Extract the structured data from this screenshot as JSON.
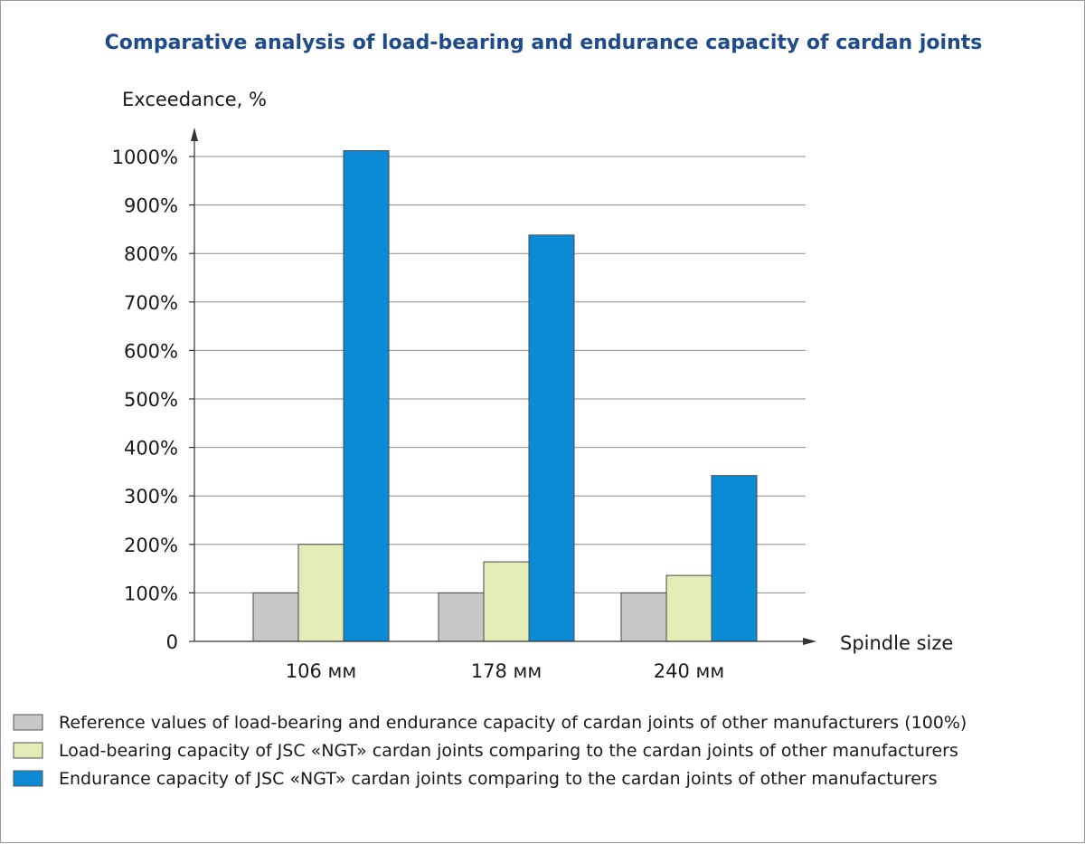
{
  "chart_data": {
    "type": "bar",
    "title": "Comparative analysis of load-bearing and endurance capacity of cardan joints",
    "ylabel": "Exceedance, %",
    "xlabel": "Spindle size",
    "categories": [
      "106 мм",
      "178 мм",
      "240 мм"
    ],
    "ylim": [
      0,
      1000
    ],
    "yticks": [
      0,
      100,
      200,
      300,
      400,
      500,
      600,
      700,
      800,
      900,
      1000
    ],
    "ytick_labels": [
      "0",
      "100%",
      "200%",
      "300%",
      "400%",
      "500%",
      "600%",
      "700%",
      "800%",
      "900%",
      "1000%"
    ],
    "grid": "horizontal",
    "legend_position": "bottom",
    "series": [
      {
        "name": "Reference values of load-bearing and endurance capacity of cardan joints of other manufacturers (100%)",
        "color": "#c8c8c8",
        "values": [
          100,
          100,
          100
        ]
      },
      {
        "name": "Load-bearing capacity of JSC «NGT» cardan joints comparing to the cardan joints of other manufacturers",
        "color": "#e2ecb6",
        "values": [
          200,
          164,
          136
        ]
      },
      {
        "name": "Endurance capacity of JSC «NGT» cardan joints comparing to the cardan joints of other manufacturers",
        "color": "#0b8bd6",
        "values": [
          1012,
          838,
          342
        ]
      }
    ]
  }
}
